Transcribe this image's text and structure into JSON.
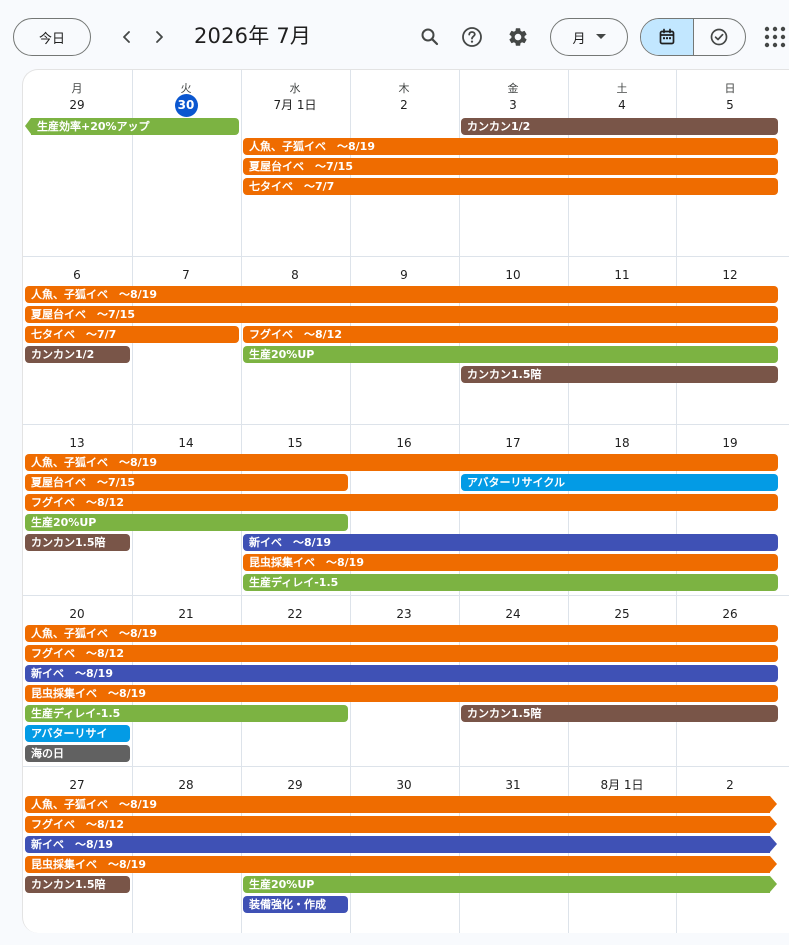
{
  "header": {
    "today_label": "今日",
    "month_title": "2026年 7月",
    "view_label": "月",
    "icons": [
      "search-icon",
      "help-icon",
      "gear-icon",
      "calendar-icon",
      "tasks-icon",
      "apps-grid-icon"
    ]
  },
  "colors": {
    "green": "#7cb342",
    "orange": "#ef6c00",
    "brown": "#795548",
    "blue": "#039be5",
    "indigo": "#3f51b5",
    "gray": "#616161",
    "today": "#0b57d0"
  },
  "weekdays": [
    "月",
    "火",
    "水",
    "木",
    "金",
    "土",
    "日"
  ],
  "weeks": [
    {
      "days": [
        "29",
        "30",
        "7月 1日",
        "2",
        "3",
        "4",
        "5"
      ],
      "today_index": 1,
      "events": [
        {
          "title": "生産効率+20%アップ",
          "start": 0,
          "end": 2,
          "row": 0,
          "color": "green",
          "cont_left": true
        },
        {
          "title": "カンカン1/2",
          "start": 4,
          "end": 7,
          "row": 0,
          "color": "brown"
        },
        {
          "title": "人魚、子狐イベ　～8/19",
          "start": 2,
          "end": 7,
          "row": 1,
          "color": "orange"
        },
        {
          "title": "夏屋台イベ　～7/15",
          "start": 2,
          "end": 7,
          "row": 2,
          "color": "orange"
        },
        {
          "title": "七タイベ　～7/7",
          "start": 2,
          "end": 7,
          "row": 3,
          "color": "orange"
        }
      ]
    },
    {
      "days": [
        "6",
        "7",
        "8",
        "9",
        "10",
        "11",
        "12"
      ],
      "events": [
        {
          "title": "人魚、子狐イベ　～8/19",
          "start": 0,
          "end": 7,
          "row": 0,
          "color": "orange"
        },
        {
          "title": "夏屋台イベ　～7/15",
          "start": 0,
          "end": 7,
          "row": 1,
          "color": "orange"
        },
        {
          "title": "七タイベ　～7/7",
          "start": 0,
          "end": 2,
          "row": 2,
          "color": "orange"
        },
        {
          "title": "フグイベ　～8/12",
          "start": 2,
          "end": 7,
          "row": 2,
          "color": "orange"
        },
        {
          "title": "カンカン1/2",
          "start": 0,
          "end": 1,
          "row": 3,
          "color": "brown"
        },
        {
          "title": "生産20%UP",
          "start": 2,
          "end": 7,
          "row": 3,
          "color": "green"
        },
        {
          "title": "カンカン1.5陪",
          "start": 4,
          "end": 7,
          "row": 4,
          "color": "brown"
        }
      ]
    },
    {
      "days": [
        "13",
        "14",
        "15",
        "16",
        "17",
        "18",
        "19"
      ],
      "events": [
        {
          "title": "人魚、子狐イベ　～8/19",
          "start": 0,
          "end": 7,
          "row": 0,
          "color": "orange"
        },
        {
          "title": "夏屋台イベ　～7/15",
          "start": 0,
          "end": 3,
          "row": 1,
          "color": "orange"
        },
        {
          "title": "アバターリサイクル",
          "start": 4,
          "end": 7,
          "row": 1,
          "color": "blue"
        },
        {
          "title": "フグイベ　～8/12",
          "start": 0,
          "end": 7,
          "row": 2,
          "color": "orange"
        },
        {
          "title": "生産20%UP",
          "start": 0,
          "end": 3,
          "row": 3,
          "color": "green"
        },
        {
          "title": "カンカン1.5陪",
          "start": 0,
          "end": 1,
          "row": 4,
          "color": "brown"
        },
        {
          "title": "新イベ　～8/19",
          "start": 2,
          "end": 7,
          "row": 4,
          "color": "indigo"
        },
        {
          "title": "昆虫採集イベ　～8/19",
          "start": 2,
          "end": 7,
          "row": 5,
          "color": "orange"
        },
        {
          "title": "生産ディレイ-1.5",
          "start": 2,
          "end": 7,
          "row": 6,
          "color": "green"
        }
      ]
    },
    {
      "days": [
        "20",
        "21",
        "22",
        "23",
        "24",
        "25",
        "26"
      ],
      "events": [
        {
          "title": "人魚、子狐イベ　～8/19",
          "start": 0,
          "end": 7,
          "row": 0,
          "color": "orange"
        },
        {
          "title": "フグイベ　～8/12",
          "start": 0,
          "end": 7,
          "row": 1,
          "color": "orange"
        },
        {
          "title": "新イベ　～8/19",
          "start": 0,
          "end": 7,
          "row": 2,
          "color": "indigo"
        },
        {
          "title": "昆虫採集イベ　～8/19",
          "start": 0,
          "end": 7,
          "row": 3,
          "color": "orange"
        },
        {
          "title": "生産ディレイ-1.5",
          "start": 0,
          "end": 3,
          "row": 4,
          "color": "green"
        },
        {
          "title": "カンカン1.5陪",
          "start": 4,
          "end": 7,
          "row": 4,
          "color": "brown"
        },
        {
          "title": "アバターリサイ",
          "start": 0,
          "end": 1,
          "row": 5,
          "color": "blue"
        },
        {
          "title": "海の日",
          "start": 0,
          "end": 1,
          "row": 6,
          "color": "gray"
        }
      ]
    },
    {
      "days": [
        "27",
        "28",
        "29",
        "30",
        "31",
        "8月 1日",
        "2"
      ],
      "events": [
        {
          "title": "人魚、子狐イベ　～8/19",
          "start": 0,
          "end": 7,
          "row": 0,
          "color": "orange",
          "cont_right": true
        },
        {
          "title": "フグイベ　～8/12",
          "start": 0,
          "end": 7,
          "row": 1,
          "color": "orange",
          "cont_right": true
        },
        {
          "title": "新イベ　～8/19",
          "start": 0,
          "end": 7,
          "row": 2,
          "color": "indigo",
          "cont_right": true
        },
        {
          "title": "昆虫採集イベ　～8/19",
          "start": 0,
          "end": 7,
          "row": 3,
          "color": "orange",
          "cont_right": true
        },
        {
          "title": "カンカン1.5陪",
          "start": 0,
          "end": 1,
          "row": 4,
          "color": "brown"
        },
        {
          "title": "生産20%UP",
          "start": 2,
          "end": 7,
          "row": 4,
          "color": "green",
          "cont_right": true
        },
        {
          "title": "装備強化・作成",
          "start": 2,
          "end": 3,
          "row": 5,
          "color": "indigo"
        }
      ]
    }
  ]
}
